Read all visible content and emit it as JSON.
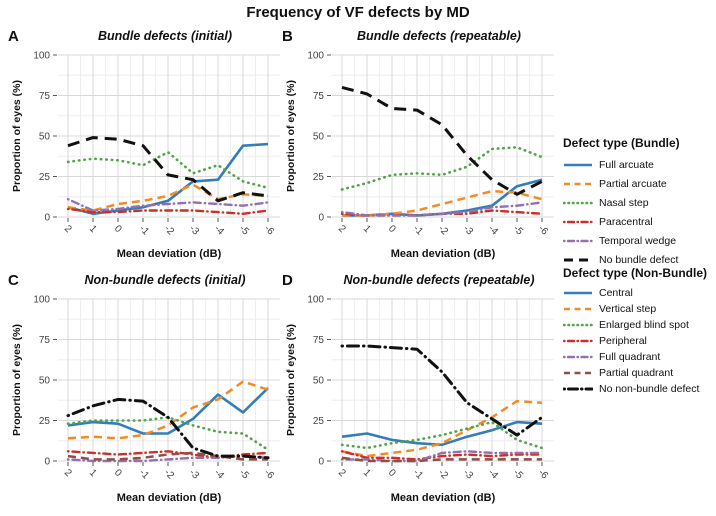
{
  "title": "Frequency of VF defects by MD",
  "axes": {
    "xlabel": "Mean deviation (dB)",
    "ylabel": "Proportion of eyes (%)",
    "xtick_labels": [
      "2",
      "1",
      "0",
      "-1",
      "-2",
      "-3",
      "-4",
      "-5",
      "-6"
    ],
    "yticks": [
      0,
      25,
      50,
      75,
      100
    ],
    "ylim": [
      0,
      100
    ],
    "grid": "on",
    "legend_position": "right"
  },
  "colors": {
    "blue": "#337eb8",
    "orange": "#f08c25",
    "green": "#52a447",
    "red": "#cc2f2a",
    "purple": "#9470af",
    "brown": "#8e4f45",
    "black": "#111111",
    "grid_major": "#d8d8d8",
    "grid_minor": "#eeeeee"
  },
  "legends": [
    {
      "title": "Defect type (Bundle)",
      "entries": [
        {
          "label": "Full arcuate",
          "color": "#337eb8",
          "style": "solid"
        },
        {
          "label": "Partial arcuate",
          "color": "#f08c25",
          "style": "dashed"
        },
        {
          "label": "Nasal step",
          "color": "#52a447",
          "style": "dotted"
        },
        {
          "label": "Paracentral",
          "color": "#cc2f2a",
          "style": "dashdot"
        },
        {
          "label": "Temporal wedge",
          "color": "#9470af",
          "style": "dashdot"
        },
        {
          "label": "No bundle defect",
          "color": "#111111",
          "style": "longdash"
        }
      ]
    },
    {
      "title": "Defect type (Non-Bundle)",
      "entries": [
        {
          "label": "Central",
          "color": "#337eb8",
          "style": "solid"
        },
        {
          "label": "Vertical step",
          "color": "#f08c25",
          "style": "dashed"
        },
        {
          "label": "Enlarged blind spot",
          "color": "#52a447",
          "style": "dotted"
        },
        {
          "label": "Peripheral",
          "color": "#cc2f2a",
          "style": "dashdot"
        },
        {
          "label": "Full quadrant",
          "color": "#9470af",
          "style": "dashdot"
        },
        {
          "label": "Partial quadrant",
          "color": "#8e4f45",
          "style": "dashed"
        },
        {
          "label": "No non-bundle defect",
          "color": "#111111",
          "style": "longdashdot"
        }
      ]
    }
  ],
  "chart_data": [
    {
      "type": "line",
      "panel": "A",
      "title": "Bundle defects (initial)",
      "xlabel": "Mean deviation (dB)",
      "ylabel": "Proportion of eyes (%)",
      "x": [
        2,
        1,
        0,
        -1,
        -2,
        -3,
        -4,
        -5,
        -6
      ],
      "ylim": [
        0,
        100
      ],
      "series": [
        {
          "name": "Full arcuate",
          "color": "#337eb8",
          "style": "solid",
          "values": [
            6,
            2,
            4,
            6,
            10,
            22,
            23,
            44,
            45
          ]
        },
        {
          "name": "Partial arcuate",
          "color": "#f08c25",
          "style": "dashed",
          "values": [
            6,
            4,
            8,
            10,
            13,
            20,
            11,
            14,
            13
          ]
        },
        {
          "name": "Nasal step",
          "color": "#52a447",
          "style": "dotted",
          "values": [
            34,
            36,
            35,
            32,
            40,
            27,
            32,
            22,
            18
          ]
        },
        {
          "name": "Paracentral",
          "color": "#cc2f2a",
          "style": "dashdot",
          "values": [
            5,
            3,
            3,
            4,
            4,
            4,
            3,
            2,
            4
          ]
        },
        {
          "name": "Temporal wedge",
          "color": "#9470af",
          "style": "dashdot",
          "values": [
            11,
            4,
            5,
            7,
            8,
            9,
            8,
            7,
            9
          ]
        },
        {
          "name": "No bundle defect",
          "color": "#111111",
          "style": "longdash",
          "values": [
            44,
            49,
            48,
            44,
            26,
            23,
            10,
            15,
            13
          ]
        }
      ]
    },
    {
      "type": "line",
      "panel": "B",
      "title": "Bundle defects (repeatable)",
      "xlabel": "Mean deviation (dB)",
      "ylabel": "Proportion of eyes (%)",
      "x": [
        2,
        1,
        0,
        -1,
        -2,
        -3,
        -4,
        -5,
        -6
      ],
      "ylim": [
        0,
        100
      ],
      "series": [
        {
          "name": "Full arcuate",
          "color": "#337eb8",
          "style": "solid",
          "values": [
            1,
            1,
            2,
            1,
            2,
            4,
            7,
            19,
            23
          ]
        },
        {
          "name": "Partial arcuate",
          "color": "#f08c25",
          "style": "dashed",
          "values": [
            1,
            1,
            2,
            4,
            8,
            12,
            16,
            15,
            11
          ]
        },
        {
          "name": "Nasal step",
          "color": "#52a447",
          "style": "dotted",
          "values": [
            17,
            21,
            26,
            27,
            26,
            31,
            42,
            43,
            37
          ]
        },
        {
          "name": "Paracentral",
          "color": "#cc2f2a",
          "style": "dashdot",
          "values": [
            2,
            1,
            1,
            1,
            2,
            2,
            4,
            3,
            2
          ]
        },
        {
          "name": "Temporal wedge",
          "color": "#9470af",
          "style": "dashdot",
          "values": [
            3,
            1,
            1,
            1,
            2,
            3,
            6,
            7,
            9
          ]
        },
        {
          "name": "No bundle defect",
          "color": "#111111",
          "style": "longdash",
          "values": [
            80,
            76,
            67,
            66,
            57,
            38,
            23,
            14,
            22
          ]
        }
      ]
    },
    {
      "type": "line",
      "panel": "C",
      "title": "Non-bundle defects (initial)",
      "xlabel": "Mean deviation (dB)",
      "ylabel": "Proportion of eyes (%)",
      "x": [
        2,
        1,
        0,
        -1,
        -2,
        -3,
        -4,
        -5,
        -6
      ],
      "ylim": [
        0,
        100
      ],
      "series": [
        {
          "name": "Central",
          "color": "#337eb8",
          "style": "solid",
          "values": [
            22,
            24,
            23,
            17,
            17,
            26,
            41,
            30,
            45
          ]
        },
        {
          "name": "Vertical step",
          "color": "#f08c25",
          "style": "dashed",
          "values": [
            14,
            15,
            14,
            16,
            22,
            33,
            38,
            49,
            44
          ]
        },
        {
          "name": "Enlarged blind spot",
          "color": "#52a447",
          "style": "dotted",
          "values": [
            23,
            25,
            25,
            25,
            27,
            22,
            18,
            17,
            7
          ]
        },
        {
          "name": "Peripheral",
          "color": "#cc2f2a",
          "style": "dashdot",
          "values": [
            6,
            5,
            4,
            5,
            6,
            4,
            2,
            4,
            5
          ]
        },
        {
          "name": "Full quadrant",
          "color": "#9470af",
          "style": "dashdot",
          "values": [
            1,
            0,
            0,
            0,
            1,
            2,
            2,
            3,
            2
          ]
        },
        {
          "name": "Partial quadrant",
          "color": "#8e4f45",
          "style": "dashed",
          "values": [
            3,
            1,
            1,
            2,
            4,
            5,
            3,
            1,
            1
          ]
        },
        {
          "name": "No non-bundle defect",
          "color": "#111111",
          "style": "longdashdot",
          "values": [
            28,
            34,
            38,
            37,
            27,
            8,
            3,
            3,
            2
          ]
        }
      ]
    },
    {
      "type": "line",
      "panel": "D",
      "title": "Non-bundle defects (repeatable)",
      "xlabel": "Mean deviation (dB)",
      "ylabel": "Proportion of eyes (%)",
      "x": [
        2,
        1,
        0,
        -1,
        -2,
        -3,
        -4,
        -5,
        -6
      ],
      "ylim": [
        0,
        100
      ],
      "series": [
        {
          "name": "Central",
          "color": "#337eb8",
          "style": "solid",
          "values": [
            15,
            17,
            13,
            11,
            10,
            15,
            19,
            24,
            23
          ]
        },
        {
          "name": "Vertical step",
          "color": "#f08c25",
          "style": "dashed",
          "values": [
            6,
            3,
            5,
            7,
            11,
            19,
            27,
            37,
            36
          ]
        },
        {
          "name": "Enlarged blind spot",
          "color": "#52a447",
          "style": "dotted",
          "values": [
            10,
            8,
            11,
            13,
            16,
            20,
            24,
            13,
            8
          ]
        },
        {
          "name": "Peripheral",
          "color": "#cc2f2a",
          "style": "dashdot",
          "values": [
            6,
            2,
            2,
            1,
            3,
            4,
            3,
            4,
            4
          ]
        },
        {
          "name": "Full quadrant",
          "color": "#9470af",
          "style": "dashdot",
          "values": [
            1,
            1,
            0,
            0,
            5,
            6,
            5,
            5,
            5
          ]
        },
        {
          "name": "Partial quadrant",
          "color": "#8e4f45",
          "style": "dashed",
          "values": [
            2,
            0,
            0,
            0,
            1,
            1,
            1,
            1,
            1
          ]
        },
        {
          "name": "No non-bundle defect",
          "color": "#111111",
          "style": "longdashdot",
          "values": [
            71,
            71,
            70,
            69,
            55,
            36,
            26,
            16,
            27
          ]
        }
      ]
    }
  ]
}
